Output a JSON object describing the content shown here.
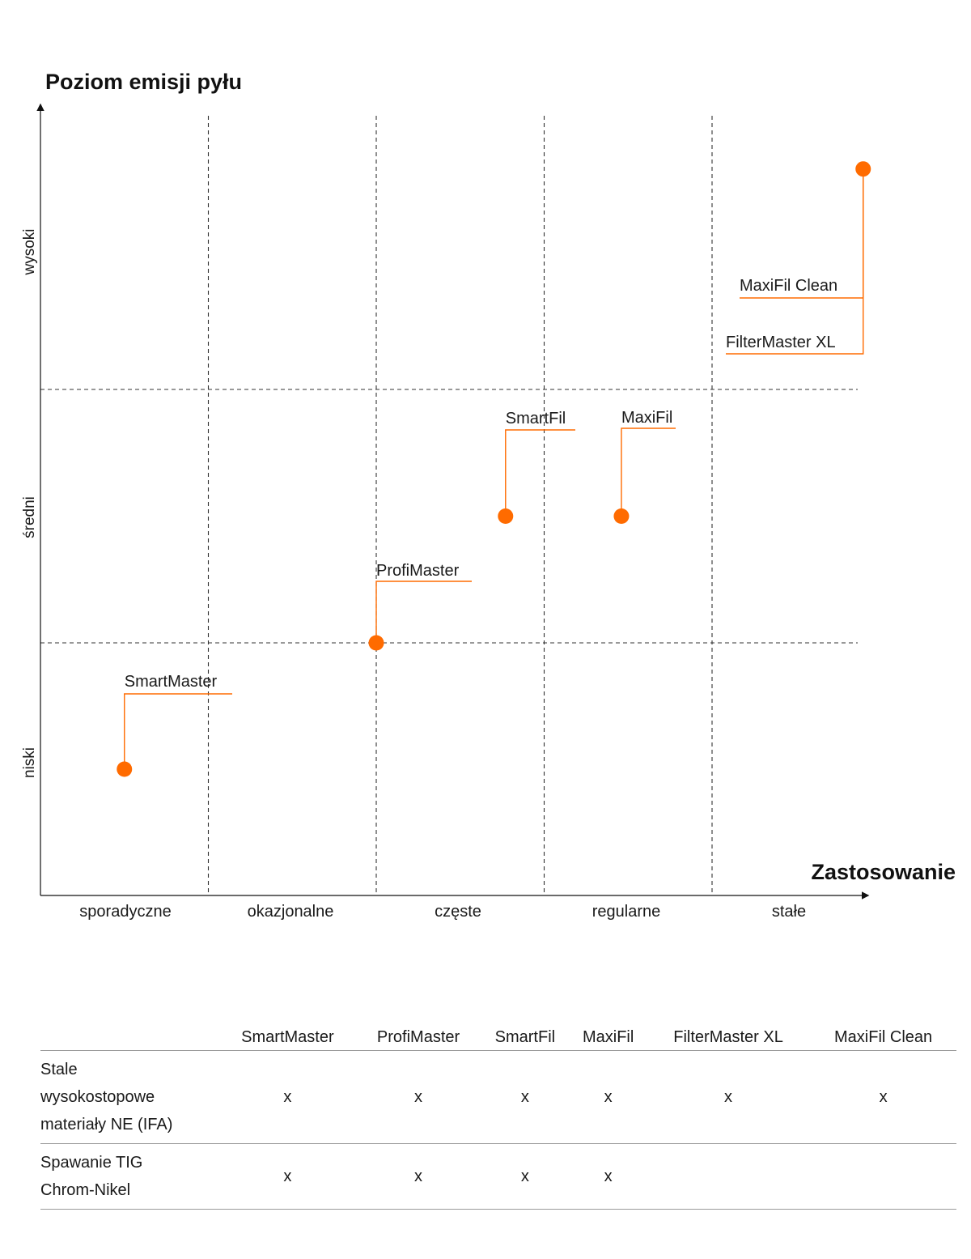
{
  "chart_data": {
    "type": "scatter",
    "y_title": "Poziom emisji pyłu",
    "x_title": "Zastosowanie",
    "x_categories": [
      "sporadyczne",
      "okazjonalne",
      "częste",
      "regularne",
      "stałe"
    ],
    "y_categories": [
      "niski",
      "średni",
      "wysoki"
    ],
    "grid": "dashed",
    "point_color": "#ff6b00",
    "points": [
      {
        "label": "SmartMaster",
        "x": 0.5,
        "y": 0.5
      },
      {
        "label": "ProfiMaster",
        "x": 2.0,
        "y": 1.0
      },
      {
        "label": "SmartFil",
        "x": 2.77,
        "y": 1.5
      },
      {
        "label": "MaxiFil",
        "x": 3.46,
        "y": 1.5
      },
      {
        "label": "MaxiFil Clean",
        "x": 4.9,
        "y": 2.87
      },
      {
        "label": "FilterMaster XL",
        "x": 4.9,
        "y": 2.87
      }
    ]
  },
  "table": {
    "columns": [
      "SmartMaster",
      "ProfiMaster",
      "SmartFil",
      "MaxiFil",
      "FilterMaster XL",
      "MaxiFil Clean"
    ],
    "rows": [
      {
        "label_lines": [
          "Stale",
          "wysokostopowe",
          "materiały NE (IFA)"
        ],
        "cells": [
          "x",
          "x",
          "x",
          "x",
          "x",
          "x"
        ]
      },
      {
        "label_lines": [
          "Spawanie TIG",
          "Chrom-Nikel"
        ],
        "cells": [
          "x",
          "x",
          "x",
          "x",
          "",
          ""
        ]
      }
    ]
  }
}
